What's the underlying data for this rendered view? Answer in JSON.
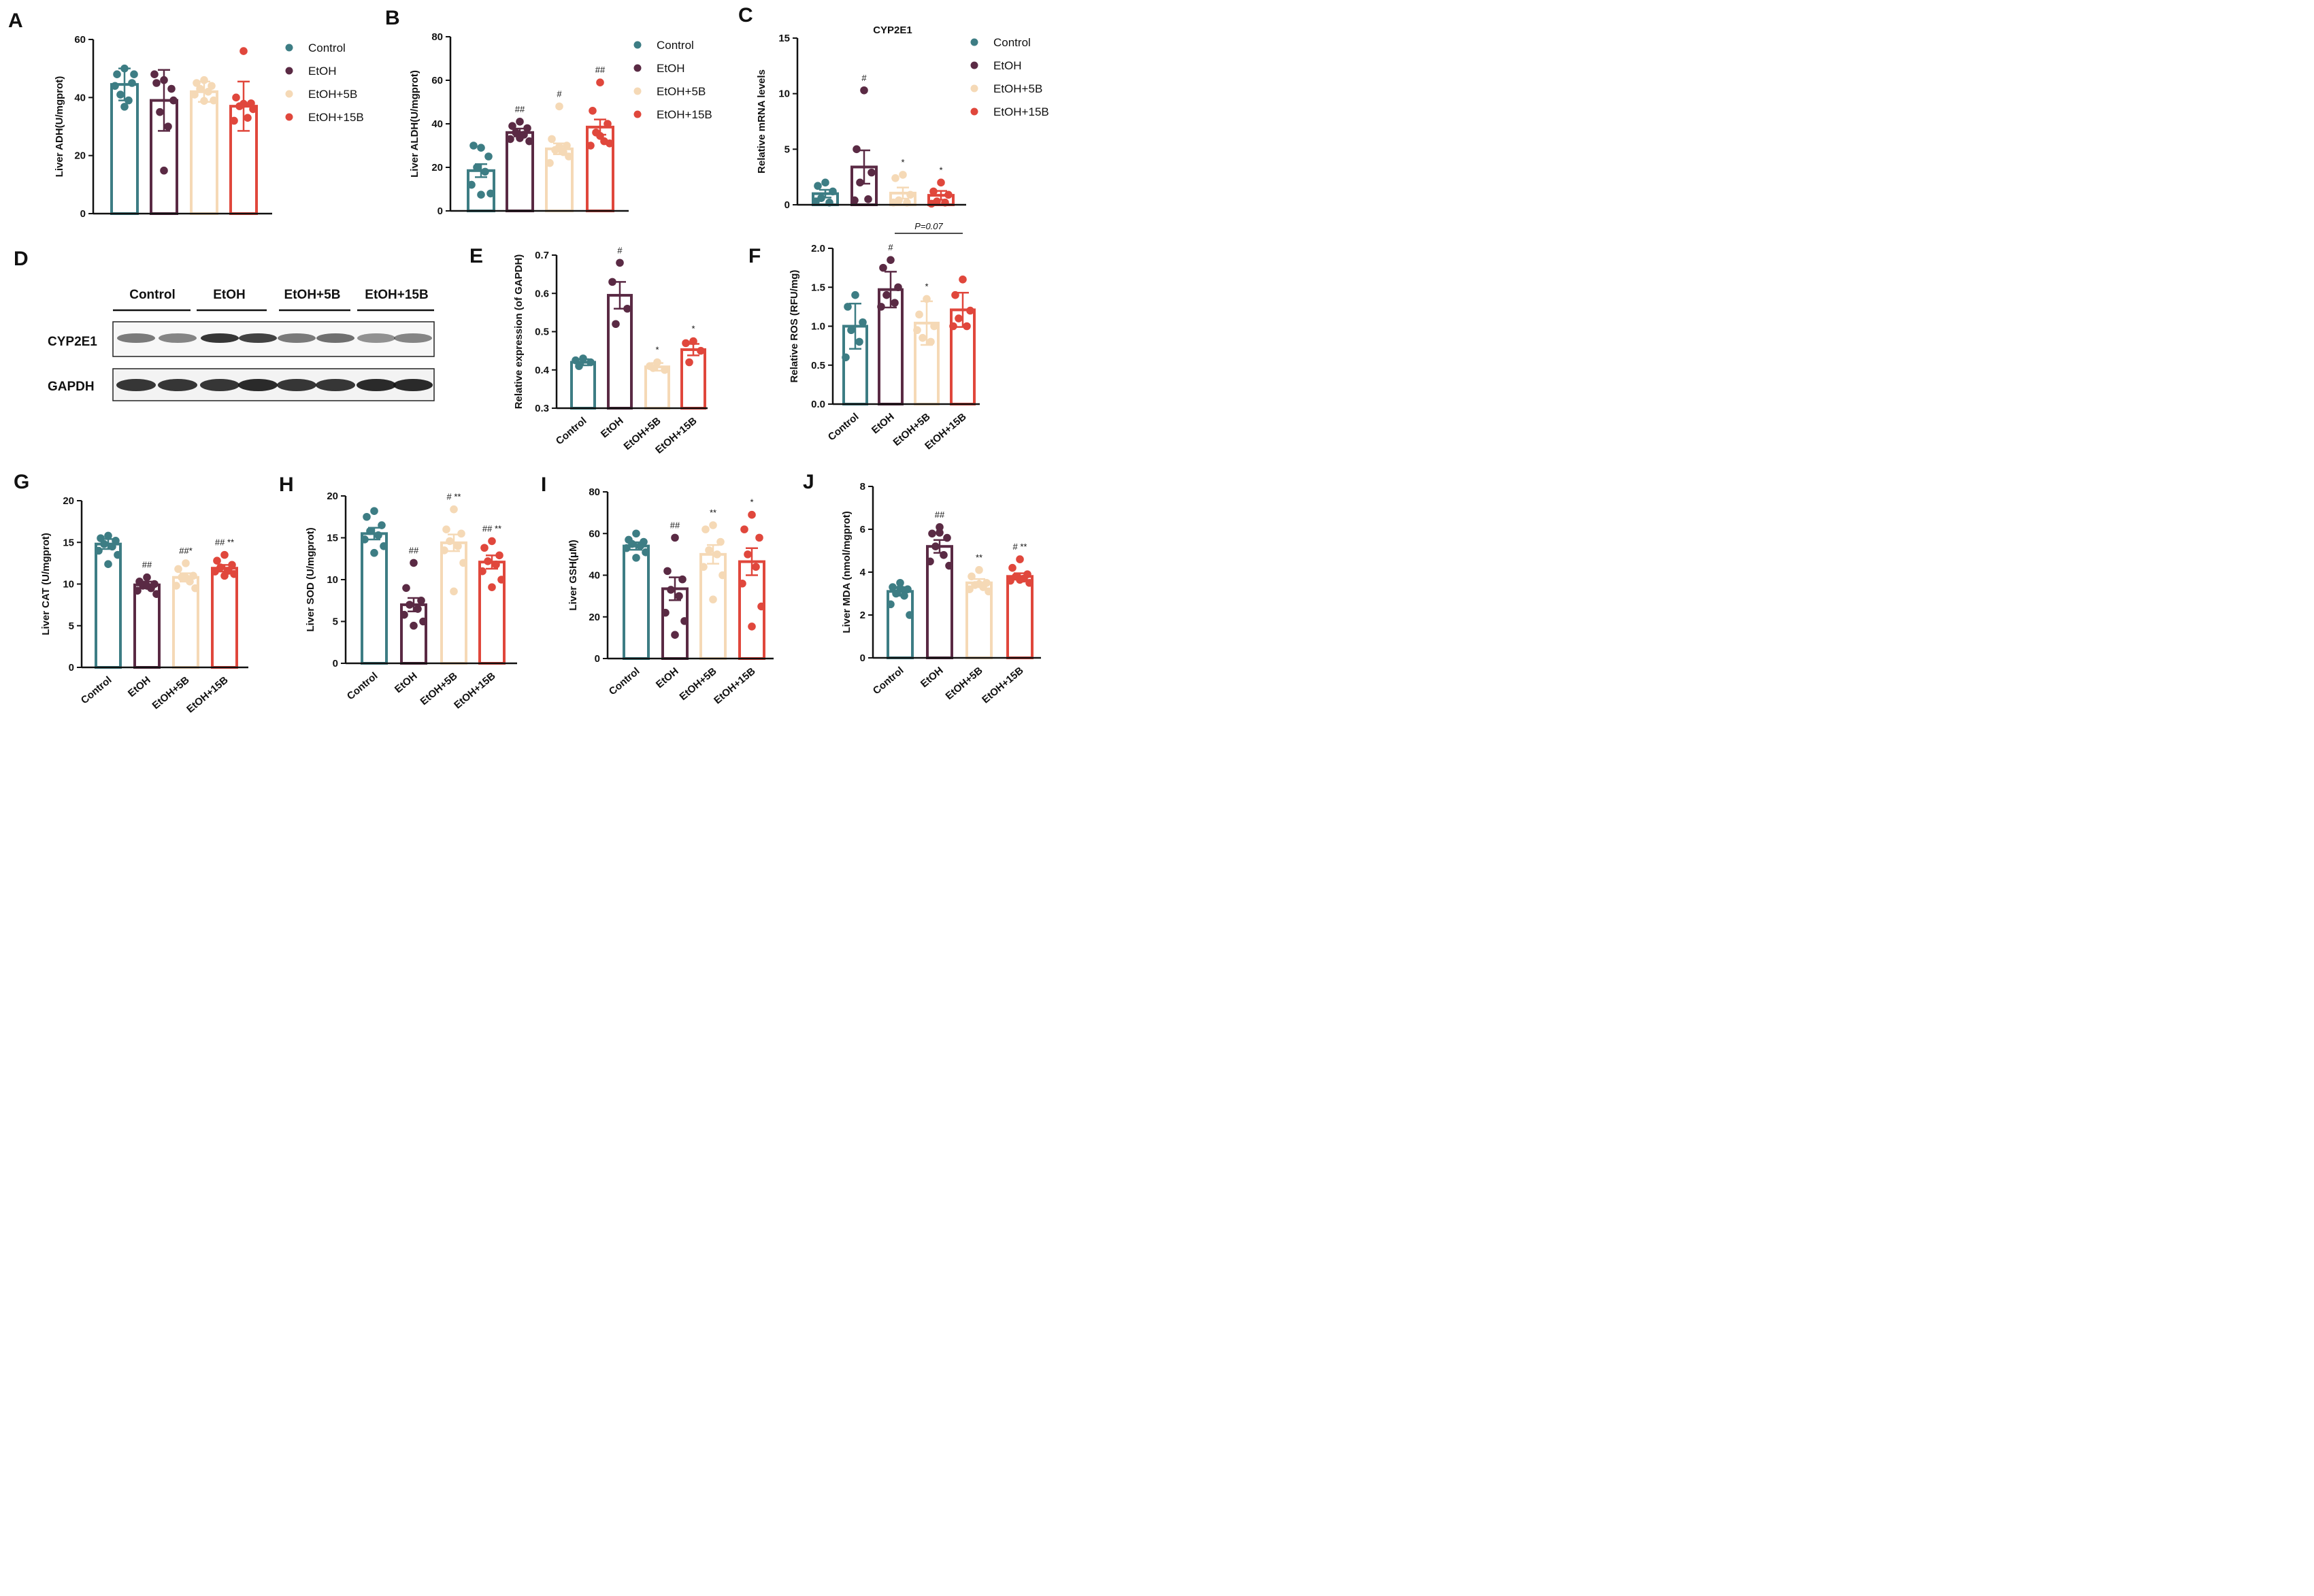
{
  "colors": {
    "control": "#3d7d84",
    "etoh": "#5a2a44",
    "etoh5b": "#f5d9b6",
    "etoh15b": "#e0473c"
  },
  "groups": [
    "Control",
    "EtOH",
    "EtOH+5B",
    "EtOH+15B"
  ],
  "chart_data": [
    {
      "panel": "A",
      "type": "bar",
      "title": "",
      "ylabel": "Liver ADH(U/mgprot)",
      "ylim": [
        0,
        60
      ],
      "yticks": [
        "0",
        "20",
        "40",
        "60"
      ],
      "categories": [
        "Control",
        "EtOH",
        "EtOH+5B",
        "EtOH+15B"
      ],
      "show_xticklabels": false,
      "legend": true,
      "values": [
        44.5,
        39,
        42,
        37
      ],
      "errors": [
        5.5,
        10.5,
        3.5,
        8.5
      ],
      "sig": [
        "",
        "",
        "",
        ""
      ],
      "points": [
        [
          50,
          48,
          45,
          41,
          39,
          44,
          48,
          38
        ],
        [
          46,
          45,
          43,
          35,
          30,
          48,
          39,
          16
        ],
        [
          46,
          45,
          44,
          43,
          42,
          41,
          39,
          40
        ],
        [
          56,
          40,
          38,
          37,
          33,
          32,
          36,
          39
        ]
      ]
    },
    {
      "panel": "B",
      "type": "bar",
      "title": "",
      "ylabel": "Liver ALDH(U/mgprot)",
      "ylim": [
        0,
        80
      ],
      "yticks": [
        "0",
        "20",
        "40",
        "60",
        "80"
      ],
      "categories": [
        "Control",
        "EtOH",
        "EtOH+5B",
        "EtOH+15B"
      ],
      "show_xticklabels": false,
      "legend": true,
      "values": [
        18.5,
        36,
        28.5,
        38.5
      ],
      "errors": [
        3,
        1.8,
        2.5,
        3.5
      ],
      "sig": [
        "",
        "##",
        "#",
        "##"
      ],
      "points": [
        [
          29,
          30,
          25,
          20,
          18,
          12,
          8,
          9
        ],
        [
          41,
          39,
          38,
          36,
          35,
          33,
          32,
          35
        ],
        [
          48,
          33,
          30,
          28,
          27,
          22,
          25,
          31
        ],
        [
          59,
          46,
          40,
          36,
          32,
          30,
          31,
          36
        ]
      ]
    },
    {
      "panel": "C",
      "type": "bar",
      "title": "CYP2E1",
      "ylabel": "Relative mRNA levels",
      "ylim": [
        0,
        15
      ],
      "yticks": [
        "0",
        "5",
        "10",
        "15"
      ],
      "categories": [
        "Control",
        "EtOH",
        "EtOH+5B",
        "EtOH+15B"
      ],
      "show_xticklabels": false,
      "legend": true,
      "values": [
        1.0,
        3.4,
        1.05,
        0.85
      ],
      "errors": [
        0.35,
        1.5,
        0.5,
        0.4
      ],
      "sig": [
        "",
        "#",
        "*",
        "*"
      ],
      "points": [
        [
          2.0,
          1.7,
          1.2,
          0.6,
          0.2,
          0.3
        ],
        [
          10.3,
          5.0,
          2.9,
          2.0,
          0.5,
          0.4
        ],
        [
          2.7,
          2.4,
          0.9,
          0.4,
          0.2,
          0.2
        ],
        [
          2.0,
          1.2,
          0.9,
          0.3,
          0.2,
          0.1
        ]
      ]
    },
    {
      "panel": "E",
      "type": "bar",
      "title": "",
      "ylabel": "Relative expression (of GAPDH)",
      "ylim": [
        0.3,
        0.7
      ],
      "yticks": [
        "0.3",
        "0.4",
        "0.5",
        "0.6",
        "0.7"
      ],
      "categories": [
        "Control",
        "EtOH",
        "EtOH+5B",
        "EtOH+15B"
      ],
      "show_xticklabels": true,
      "legend": false,
      "values": [
        0.42,
        0.595,
        0.408,
        0.453
      ],
      "errors": [
        0.008,
        0.035,
        0.01,
        0.015
      ],
      "sig": [
        "",
        "#",
        "*",
        "*"
      ],
      "points": [
        [
          0.43,
          0.425,
          0.42,
          0.41
        ],
        [
          0.68,
          0.63,
          0.56,
          0.52
        ],
        [
          0.42,
          0.41,
          0.4,
          0.405
        ],
        [
          0.475,
          0.47,
          0.45,
          0.42
        ]
      ]
    },
    {
      "panel": "F",
      "type": "bar",
      "title": "",
      "ylabel": "Relative ROS (RFU/mg)",
      "ylim": [
        0,
        2.0
      ],
      "yticks": [
        "0.0",
        "0.5",
        "1.0",
        "1.5",
        "2.0"
      ],
      "categories": [
        "Control",
        "EtOH",
        "EtOH+5B",
        "EtOH+15B"
      ],
      "show_xticklabels": true,
      "legend": false,
      "values": [
        1.0,
        1.47,
        1.04,
        1.21
      ],
      "errors": [
        0.29,
        0.23,
        0.28,
        0.22
      ],
      "sig": [
        "",
        "#",
        "*",
        ""
      ],
      "bracket": {
        "from": 1,
        "to": 3,
        "label": "P=0.07"
      },
      "points": [
        [
          1.4,
          1.25,
          1.05,
          0.95,
          0.8,
          0.6
        ],
        [
          1.85,
          1.75,
          1.5,
          1.4,
          1.3,
          1.25
        ],
        [
          1.35,
          1.15,
          1.0,
          0.85,
          0.8,
          0.95
        ],
        [
          1.6,
          1.4,
          1.2,
          1.1,
          1.0,
          1.0
        ]
      ]
    },
    {
      "panel": "G",
      "type": "bar",
      "title": "",
      "ylabel": "Liver CAT  (U/mgprot)",
      "ylim": [
        0,
        20
      ],
      "yticks": [
        "0",
        "5",
        "10",
        "15",
        "20"
      ],
      "categories": [
        "Control",
        "EtOH",
        "EtOH+5B",
        "EtOH+15B"
      ],
      "show_xticklabels": true,
      "legend": false,
      "values": [
        14.8,
        9.9,
        10.8,
        11.9
      ],
      "errors": [
        0.6,
        0.4,
        0.5,
        0.4
      ],
      "sig": [
        "",
        "##",
        "##*",
        "## **"
      ],
      "points": [
        [
          15.8,
          15.5,
          15.2,
          14.8,
          14.5,
          14.0,
          13.5,
          12.8
        ],
        [
          10.8,
          10.3,
          10.0,
          9.8,
          9.5,
          9.2,
          8.8,
          10.2
        ],
        [
          12.5,
          11.8,
          11.0,
          10.8,
          10.3,
          9.8,
          9.5,
          11.2
        ],
        [
          13.5,
          12.8,
          12.3,
          12.0,
          11.6,
          11.5,
          11.2,
          11.4
        ]
      ]
    },
    {
      "panel": "H",
      "type": "bar",
      "title": "",
      "ylabel": "Liver SOD (U/mgprot)",
      "ylim": [
        0,
        20
      ],
      "yticks": [
        "0",
        "5",
        "10",
        "15",
        "20"
      ],
      "categories": [
        "Control",
        "EtOH",
        "EtOH+5B",
        "EtOH+15B"
      ],
      "show_xticklabels": true,
      "legend": false,
      "values": [
        15.5,
        7.0,
        14.4,
        12.1
      ],
      "errors": [
        0.7,
        0.8,
        1.0,
        0.8
      ],
      "sig": [
        "",
        "##",
        "# **",
        "## **"
      ],
      "points": [
        [
          18.2,
          17.5,
          16.5,
          15.8,
          15.3,
          14.8,
          14.0,
          13.6
        ],
        [
          12.0,
          9.0,
          7.5,
          7.0,
          6.5,
          5.8,
          5.0,
          4.9
        ],
        [
          18.4,
          16.0,
          15.5,
          14.6,
          14.0,
          13.5,
          12.0,
          9.0
        ],
        [
          14.6,
          13.8,
          12.9,
          12.2,
          11.8,
          11.0,
          10.0,
          9.5
        ]
      ]
    },
    {
      "panel": "I",
      "type": "bar",
      "title": "",
      "ylabel": "Liver GSH(μM)",
      "ylim": [
        0,
        80
      ],
      "yticks": [
        "0",
        "20",
        "40",
        "60",
        "80"
      ],
      "categories": [
        "Control",
        "EtOH",
        "EtOH+5B",
        "EtOH+15B"
      ],
      "show_xticklabels": true,
      "legend": false,
      "values": [
        54,
        33.5,
        50,
        46.5
      ],
      "errors": [
        1.8,
        5.5,
        4.5,
        6.5
      ],
      "sig": [
        "",
        "##",
        "**",
        "*"
      ],
      "points": [
        [
          60,
          57,
          56,
          55,
          54,
          53,
          51,
          50
        ],
        [
          58,
          42,
          38,
          33,
          30,
          22,
          18,
          13
        ],
        [
          64,
          62,
          56,
          52,
          50,
          44,
          40,
          30
        ],
        [
          69,
          62,
          58,
          50,
          44,
          36,
          25,
          17
        ]
      ]
    },
    {
      "panel": "J",
      "type": "bar",
      "title": "",
      "ylabel": "Liver MDA (nmol/mgprot)",
      "ylim": [
        0,
        8
      ],
      "yticks": [
        "0",
        "2",
        "4",
        "6",
        "8"
      ],
      "categories": [
        "Control",
        "EtOH",
        "EtOH+5B",
        "EtOH+15B"
      ],
      "show_xticklabels": true,
      "legend": false,
      "values": [
        3.1,
        5.2,
        3.5,
        3.8
      ],
      "errors": [
        0.2,
        0.3,
        0.18,
        0.15
      ],
      "sig": [
        "",
        "##",
        "**",
        "# **"
      ],
      "points": [
        [
          3.5,
          3.3,
          3.2,
          3.0,
          2.9,
          2.5,
          2.0,
          3.4
        ],
        [
          6.1,
          5.8,
          5.6,
          5.2,
          4.8,
          4.5,
          4.3,
          6.0
        ],
        [
          4.1,
          3.8,
          3.5,
          3.4,
          3.3,
          3.2,
          3.1,
          3.6
        ],
        [
          4.6,
          4.2,
          3.9,
          3.8,
          3.7,
          3.6,
          3.5,
          3.8
        ]
      ]
    }
  ],
  "western_blot": {
    "panel": "D",
    "group_labels": [
      "Control",
      "EtOH",
      "EtOH+5B",
      "EtOH+15B"
    ],
    "row_labels": [
      "CYP2E1",
      "GAPDH"
    ],
    "cyp2e1_band_intensity": [
      0.55,
      0.5,
      0.85,
      0.8,
      0.55,
      0.6,
      0.45,
      0.5
    ],
    "gapdh_band_intensity": [
      0.85,
      0.85,
      0.85,
      0.9,
      0.85,
      0.85,
      0.9,
      0.9
    ]
  }
}
